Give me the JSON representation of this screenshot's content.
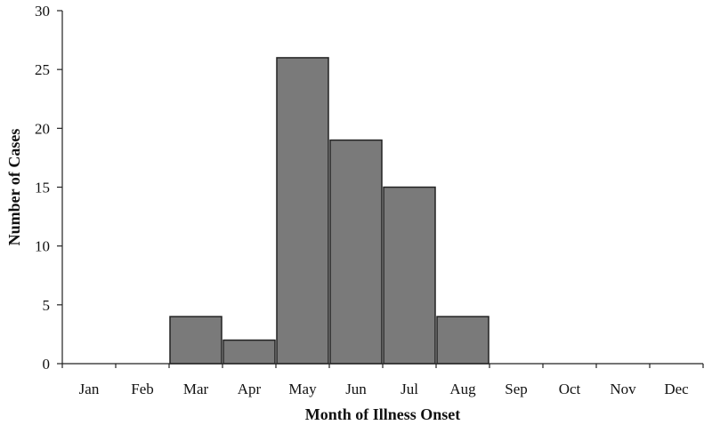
{
  "chart_data": {
    "type": "bar",
    "categories": [
      "Jan",
      "Feb",
      "Mar",
      "Apr",
      "May",
      "Jun",
      "Jul",
      "Aug",
      "Sep",
      "Oct",
      "Nov",
      "Dec"
    ],
    "values": [
      0,
      0,
      4,
      2,
      26,
      19,
      15,
      4,
      0,
      0,
      0,
      0
    ],
    "xlabel": "Month of Illness Onset",
    "ylabel": "Number of Cases",
    "ylim": [
      0,
      30
    ],
    "yticks": [
      0,
      5,
      10,
      15,
      20,
      25,
      30
    ],
    "grid": false,
    "legend": "none",
    "bar_color": "#7a7a7a"
  }
}
